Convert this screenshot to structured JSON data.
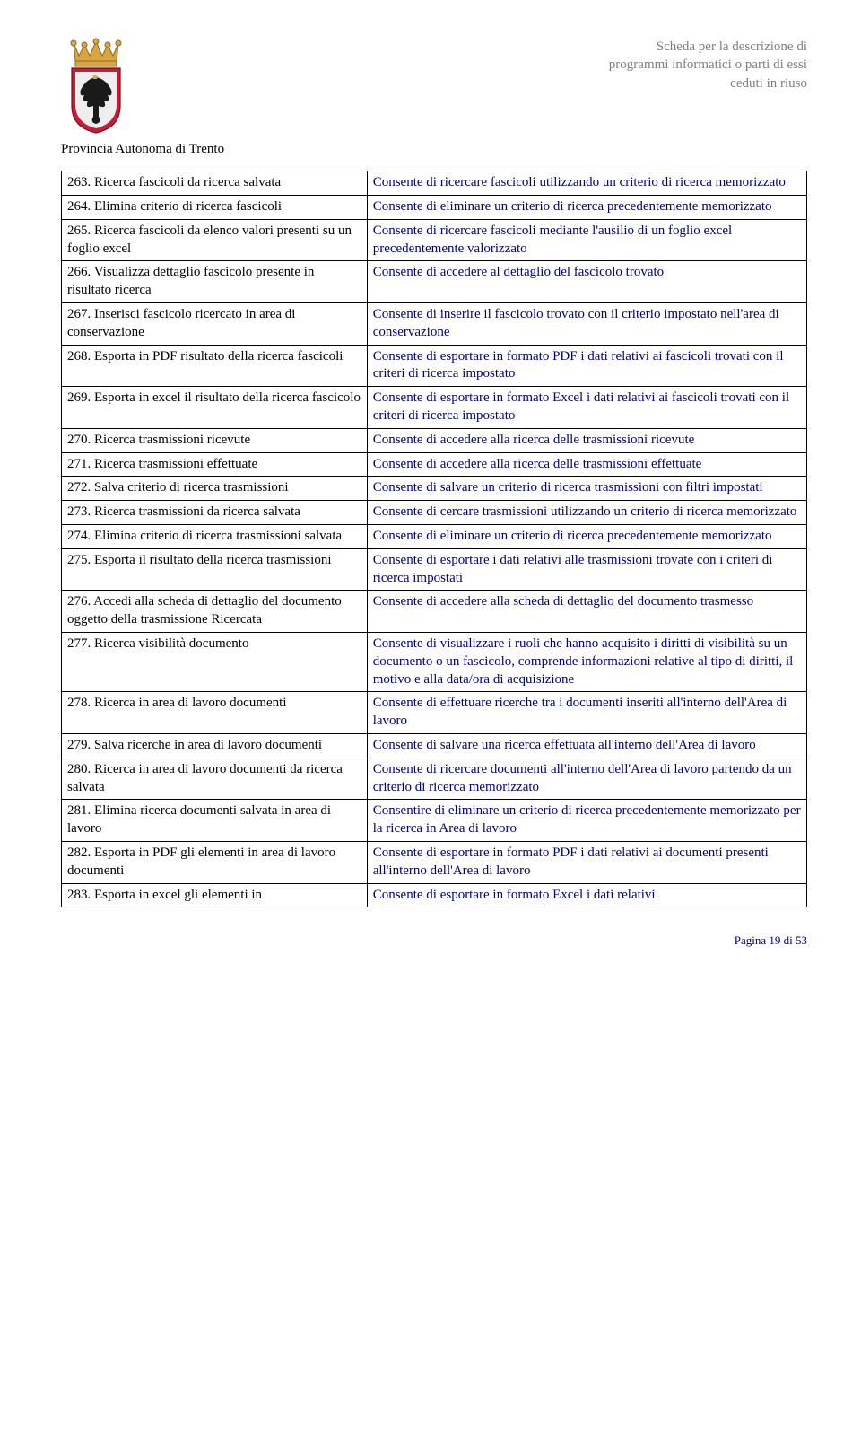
{
  "header": {
    "line1": "Scheda per la descrizione di",
    "line2": "programmi informatici o parti di essi",
    "line3": "ceduti in riuso"
  },
  "provincia": "Provincia Autonoma di Trento",
  "rows": [
    {
      "l": "263. Ricerca fascicoli da ricerca salvata",
      "r": "Consente di ricercare fascicoli utilizzando un criterio di ricerca memorizzato"
    },
    {
      "l": "264. Elimina criterio di ricerca fascicoli",
      "r": "Consente di eliminare un criterio di ricerca precedentemente memorizzato"
    },
    {
      "l": "265. Ricerca fascicoli da elenco valori presenti su un foglio excel",
      "r": "Consente di ricercare fascicoli mediante l'ausilio di un foglio excel precedentemente valorizzato"
    },
    {
      "l": "266. Visualizza dettaglio fascicolo presente in risultato ricerca",
      "r": "Consente di accedere al dettaglio del fascicolo trovato"
    },
    {
      "l": "267. Inserisci fascicolo ricercato in area di conservazione",
      "r": "Consente di inserire il fascicolo trovato con il criterio impostato nell'area di conservazione"
    },
    {
      "l": "268. Esporta in PDF risultato della ricerca fascicoli",
      "r": "Consente di esportare in formato PDF i dati relativi ai fascicoli trovati con il criteri di ricerca impostato"
    },
    {
      "l": "269. Esporta in excel il risultato della ricerca fascicolo",
      "r": "Consente di esportare in formato Excel i dati relativi ai fascicoli trovati con il criteri di ricerca impostato"
    },
    {
      "l": "270. Ricerca trasmissioni ricevute",
      "r": "Consente di accedere alla ricerca delle trasmissioni ricevute"
    },
    {
      "l": "271. Ricerca trasmissioni effettuate",
      "r": "Consente di accedere alla ricerca delle trasmissioni effettuate"
    },
    {
      "l": "272. Salva criterio di ricerca trasmissioni",
      "r": "Consente di salvare un criterio di ricerca trasmissioni con filtri impostati"
    },
    {
      "l": "273. Ricerca trasmissioni da ricerca salvata",
      "r": "Consente di cercare trasmissioni utilizzando un criterio di ricerca memorizzato"
    },
    {
      "l": "274. Elimina criterio di ricerca trasmissioni salvata",
      "r": "Consente di eliminare un criterio di ricerca precedentemente memorizzato"
    },
    {
      "l": "275. Esporta il risultato della ricerca trasmissioni",
      "r": "Consente di esportare i dati relativi alle trasmissioni trovate con i criteri di ricerca impostati"
    },
    {
      "l": "276. Accedi alla scheda di dettaglio del documento oggetto della trasmissione Ricercata",
      "r": "Consente di accedere alla scheda di dettaglio del documento trasmesso"
    },
    {
      "l": "277. Ricerca visibilità documento",
      "r": "Consente di visualizzare i ruoli che hanno acquisito i diritti di visibilità su un documento o un fascicolo, comprende informazioni relative al tipo di diritti, il motivo e alla data/ora di acquisizione"
    },
    {
      "l": "278. Ricerca in area di lavoro documenti",
      "r": "Consente di effettuare ricerche tra i documenti inseriti all'interno dell'Area di lavoro"
    },
    {
      "l": "279. Salva ricerche in area di lavoro documenti",
      "r": "Consente di salvare una ricerca effettuata all'interno dell'Area di lavoro"
    },
    {
      "l": "280. Ricerca in area di lavoro documenti da ricerca salvata",
      "r": "Consente di ricercare documenti all'interno dell'Area di lavoro partendo da un criterio di ricerca memorizzato"
    },
    {
      "l": "281. Elimina ricerca documenti salvata in area di lavoro",
      "r": "Consentire di eliminare un criterio di ricerca precedentemente memorizzato per la ricerca in Area di lavoro"
    },
    {
      "l": "282. Esporta in PDF gli elementi in area di lavoro documenti",
      "r": "Consente di esportare in formato PDF i dati relativi ai documenti presenti all'interno dell'Area di lavoro"
    },
    {
      "l": "283. Esporta in excel gli elementi in",
      "r": "Consente di esportare in formato Excel i dati relativi"
    }
  ],
  "footer": "Pagina 19 di 53"
}
